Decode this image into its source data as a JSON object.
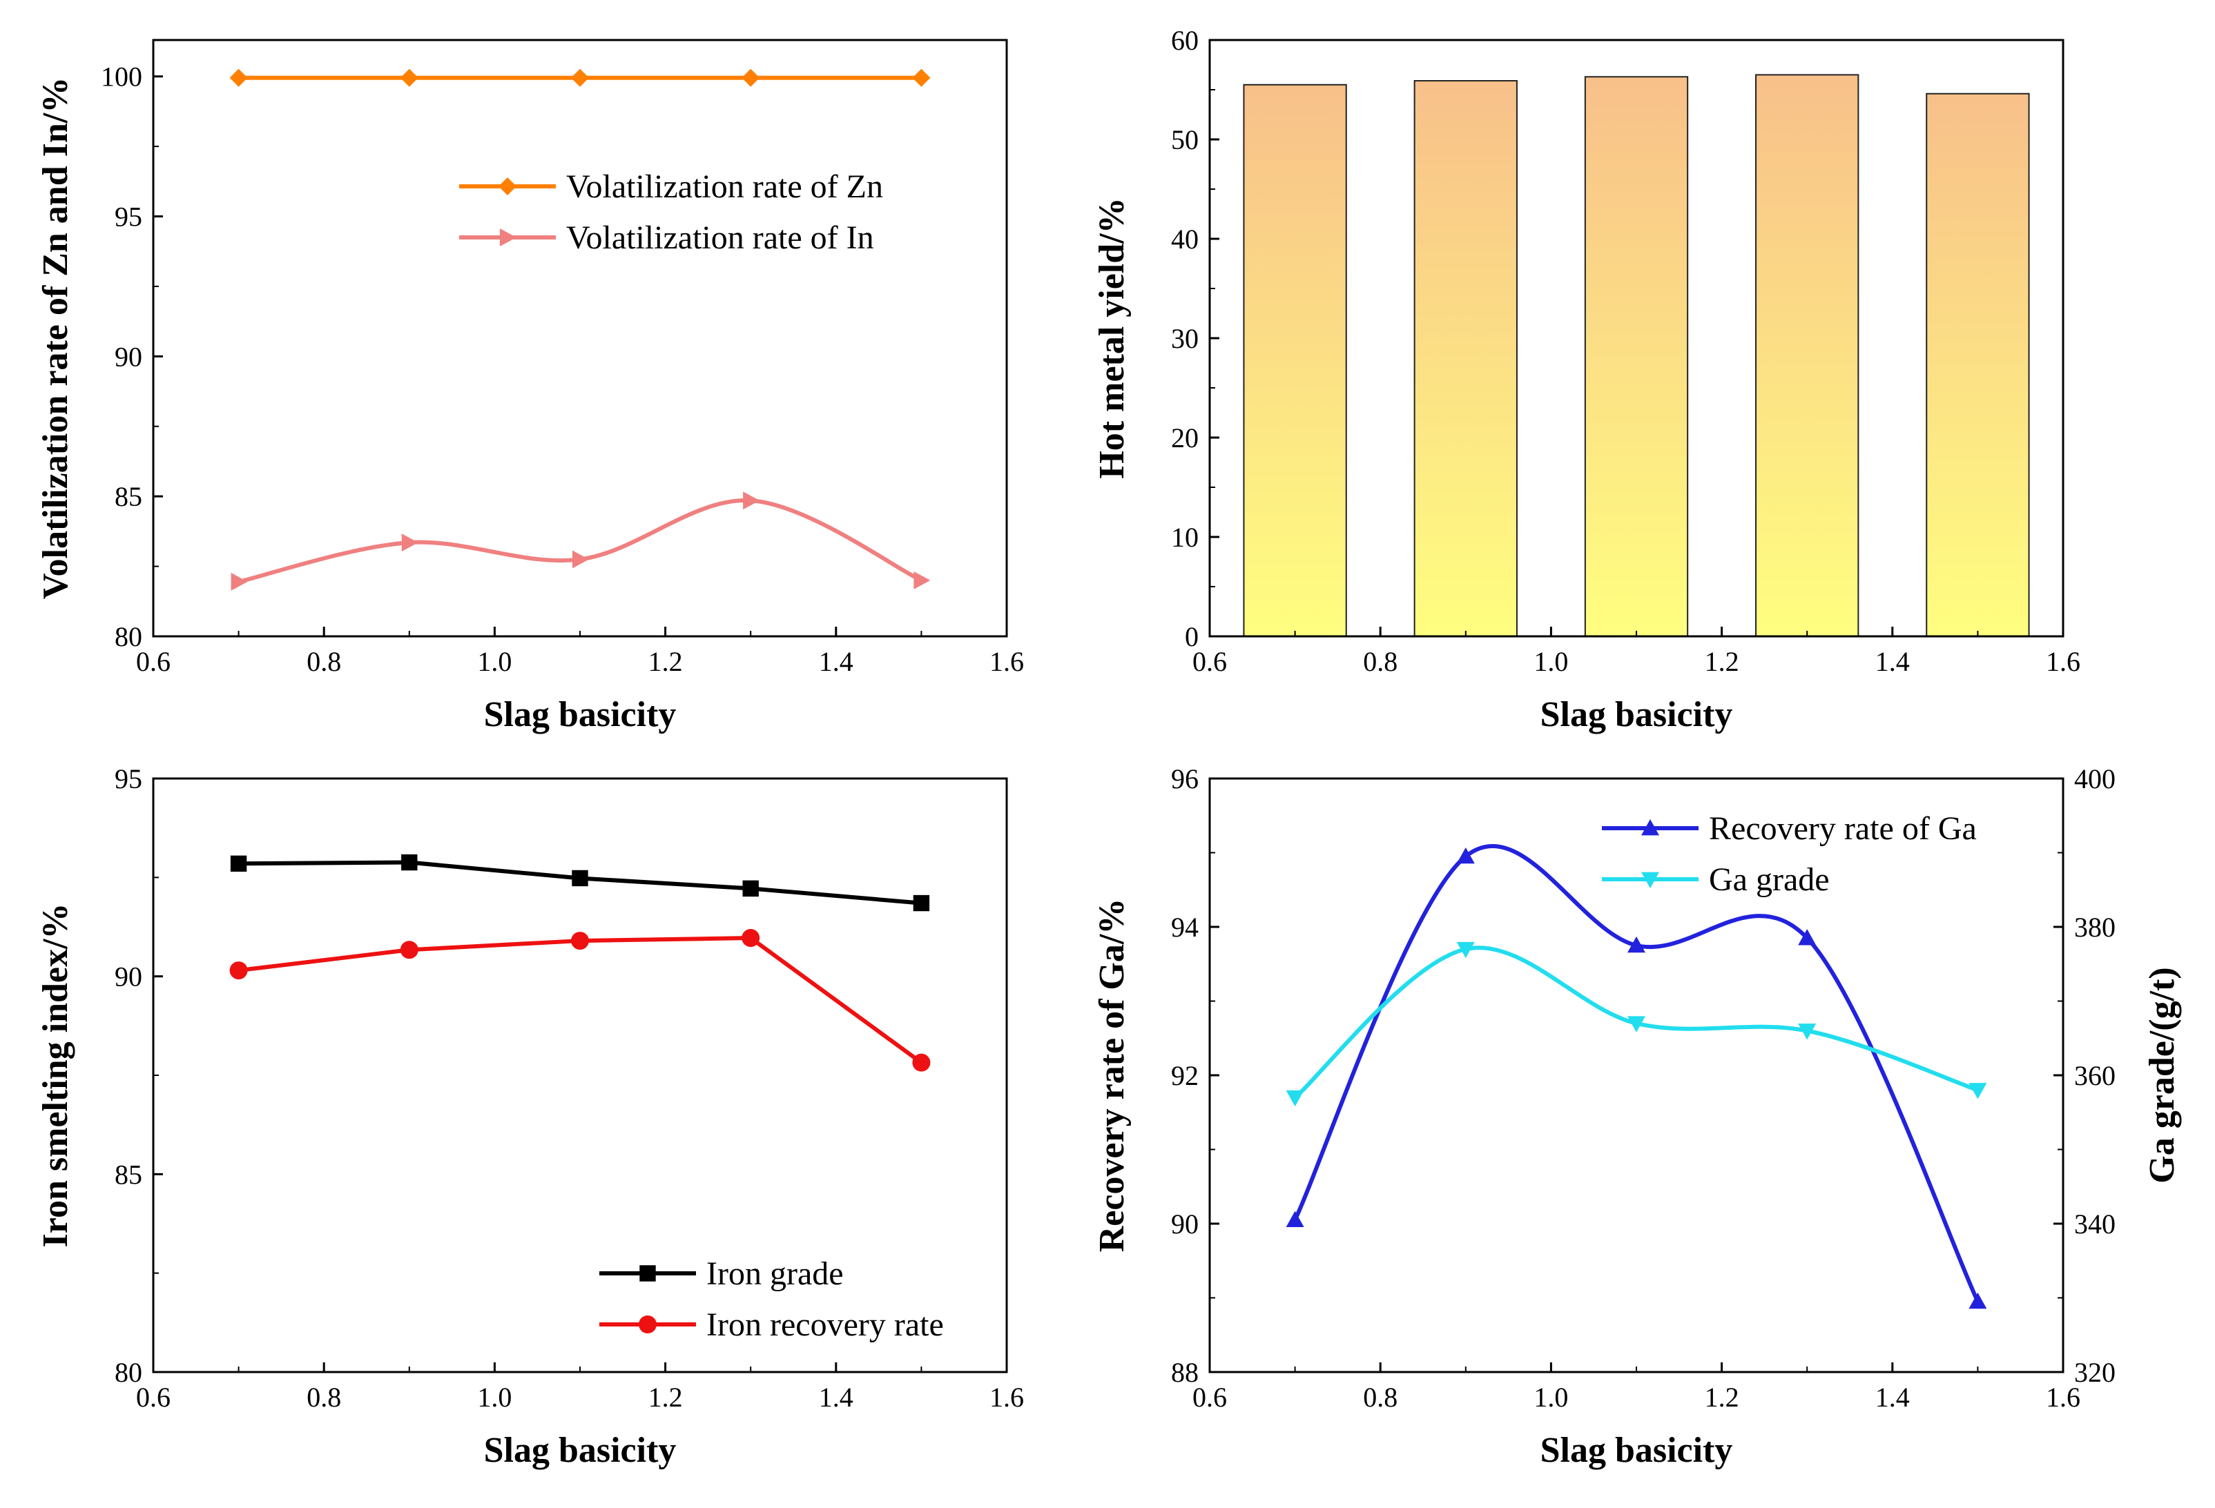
{
  "chart_data": [
    {
      "id": "panel-a",
      "type": "line",
      "title": "",
      "xlabel": "Slag basicity",
      "ylabel": "Volatilization rate of Zn and In/%",
      "xlim": [
        0.6,
        1.6
      ],
      "ylim": [
        80,
        101.3
      ],
      "xticks": [
        "0.6",
        "0.8",
        "1.0",
        "1.2",
        "1.4",
        "1.6"
      ],
      "yticks": [
        "80",
        "85",
        "90",
        "95",
        "100"
      ],
      "x": [
        0.7,
        0.9,
        1.1,
        1.3,
        1.5
      ],
      "legend_position": "upper-right",
      "series": [
        {
          "name": "Volatilization rate of Zn",
          "color": "#ff8000",
          "marker": "diamond",
          "smooth": false,
          "values": [
            99.95,
            99.95,
            99.95,
            99.95,
            99.95
          ]
        },
        {
          "name": "Volatilization rate of In",
          "color": "#f08080",
          "marker": "triangle-right",
          "smooth": true,
          "values": [
            81.95,
            83.35,
            82.75,
            84.85,
            82.0
          ]
        }
      ]
    },
    {
      "id": "panel-b",
      "type": "bar",
      "title": "",
      "xlabel": "Slag basicity",
      "ylabel": "Hot metal yield/%",
      "xlim": [
        0.6,
        1.6
      ],
      "ylim": [
        0,
        60
      ],
      "xticks": [
        "0.6",
        "0.8",
        "1.0",
        "1.2",
        "1.4",
        "1.6"
      ],
      "yticks": [
        "0",
        "10",
        "20",
        "30",
        "40",
        "50",
        "60"
      ],
      "x": [
        0.7,
        0.9,
        1.1,
        1.3,
        1.5
      ],
      "bar_width": 0.12,
      "gradient": [
        "#ffff80",
        "#f8c08a"
      ],
      "values": [
        55.5,
        55.9,
        56.3,
        56.5,
        54.6
      ]
    },
    {
      "id": "panel-c",
      "type": "line",
      "title": "",
      "xlabel": "Slag basicity",
      "ylabel": "Iron smelting index/%",
      "xlim": [
        0.6,
        1.6
      ],
      "ylim": [
        80,
        95
      ],
      "xticks": [
        "0.6",
        "0.8",
        "1.0",
        "1.2",
        "1.4",
        "1.6"
      ],
      "yticks": [
        "80",
        "85",
        "90",
        "95"
      ],
      "x": [
        0.7,
        0.9,
        1.1,
        1.3,
        1.5
      ],
      "legend_position": "lower-right",
      "series": [
        {
          "name": "Iron grade",
          "color": "#000000",
          "marker": "square",
          "smooth": false,
          "values": [
            92.85,
            92.88,
            92.48,
            92.22,
            91.85
          ]
        },
        {
          "name": "Iron recovery rate",
          "color": "#ee1111",
          "marker": "circle",
          "smooth": false,
          "values": [
            90.15,
            90.67,
            90.9,
            90.97,
            87.82
          ]
        }
      ]
    },
    {
      "id": "panel-d",
      "type": "line",
      "title": "",
      "xlabel": "Slag basicity",
      "ylabel": "Recovery rate of Ga/%",
      "y2label": "Ga grade/(g/t)",
      "xlim": [
        0.6,
        1.6
      ],
      "ylim": [
        88,
        96
      ],
      "y2lim": [
        320,
        400
      ],
      "xticks": [
        "0.6",
        "0.8",
        "1.0",
        "1.2",
        "1.4",
        "1.6"
      ],
      "yticks": [
        "88",
        "90",
        "92",
        "94",
        "96"
      ],
      "y2ticks": [
        "320",
        "340",
        "360",
        "380",
        "400"
      ],
      "x": [
        0.7,
        0.9,
        1.1,
        1.3,
        1.5
      ],
      "legend_position": "upper-right",
      "series": [
        {
          "name": "Recovery rate of Ga",
          "color": "#2222dd",
          "marker": "triangle-up",
          "axis": "left",
          "smooth": true,
          "values": [
            90.05,
            94.95,
            93.75,
            93.85,
            88.95
          ]
        },
        {
          "name": "Ga grade",
          "color": "#22ddee",
          "marker": "triangle-down",
          "axis": "right",
          "smooth": true,
          "values": [
            357,
            377,
            367,
            366,
            358
          ]
        }
      ]
    }
  ]
}
